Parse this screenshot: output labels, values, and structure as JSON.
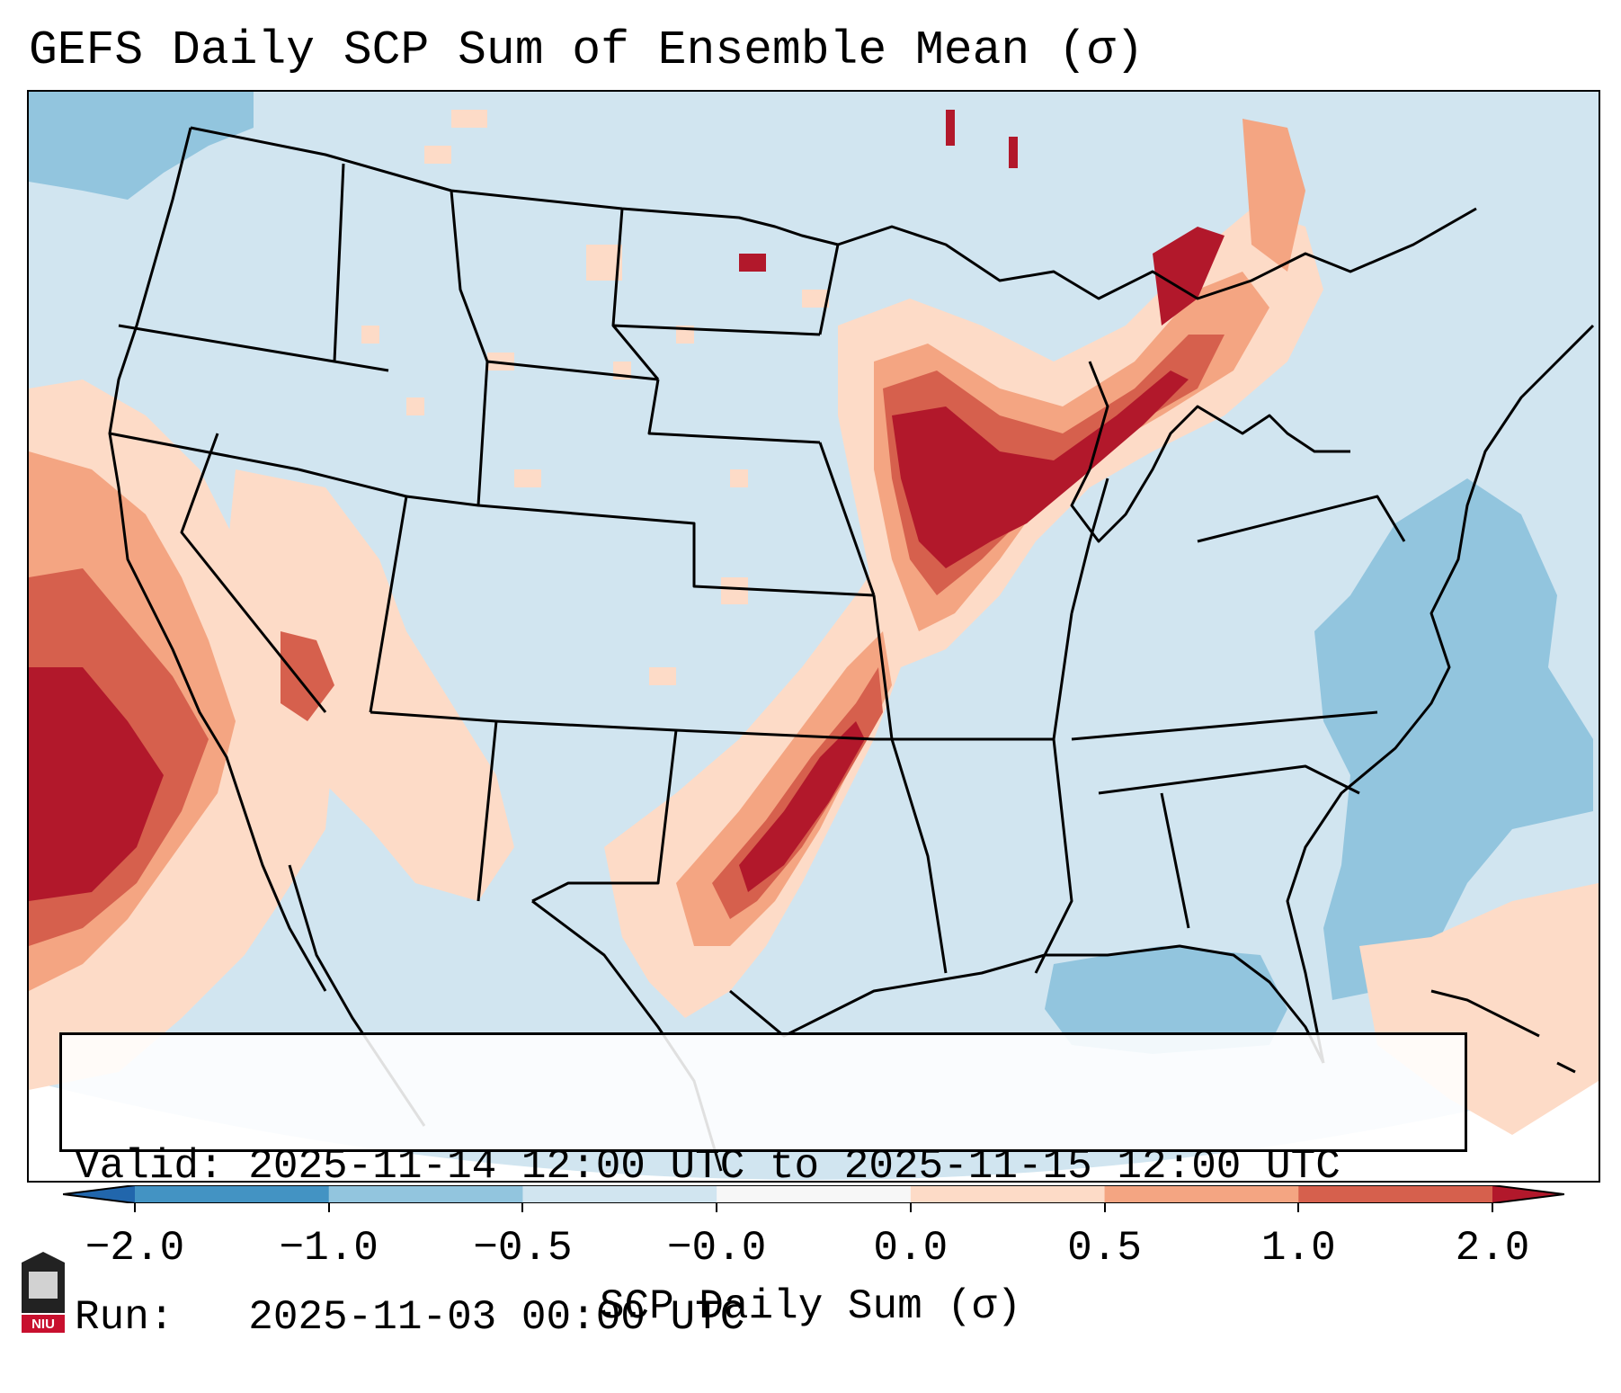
{
  "title": "GEFS Daily SCP Sum of Ensemble Mean (σ)",
  "info": {
    "valid_line": "Valid: 2025-11-14 12:00 UTC to 2025-11-15 12:00 UTC",
    "run_line": "Run:   2025-11-03 00:00 UTC"
  },
  "colorbar": {
    "label": "SCP Daily Sum (σ)",
    "ticks": [
      "−2.0",
      "−1.0",
      "−0.5",
      "−0.0",
      "0.0",
      "0.5",
      "1.0",
      "2.0"
    ],
    "colors": {
      "below_min": "#2166ac",
      "bin_neg2_neg1": "#4393c3",
      "bin_neg1_neg05": "#92c5de",
      "bin_neg05_0": "#d1e5f0",
      "bin_0_0": "#f7f7f7",
      "bin_0_05": "#fddbc7",
      "bin_05_1": "#f4a582",
      "bin_1_2": "#d6604d",
      "above_max": "#b2182b"
    }
  },
  "map": {
    "region": "Continental United States",
    "background_color": "#d1e5f0",
    "max_signal_areas": [
      "Upper Midwest / Iowa-Wisconsin-Michigan",
      "Oklahoma-Texas",
      "California coast and Pacific"
    ]
  },
  "logo": {
    "text": "NIU",
    "name": "Northern Illinois University logo"
  }
}
